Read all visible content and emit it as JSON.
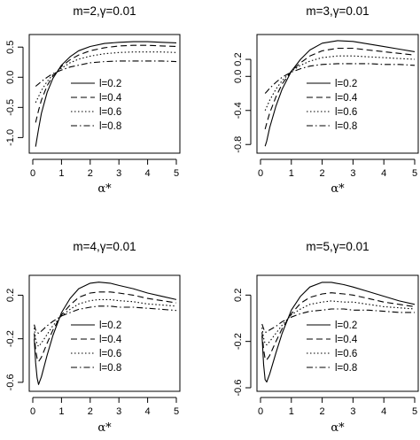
{
  "chart_data": [
    {
      "type": "line",
      "title": "m=2,γ=0.01",
      "xlabel": "α*",
      "ylabel": "",
      "xlim": [
        0,
        5
      ],
      "ylim": [
        -1.2,
        0.65
      ],
      "xticks": [
        0,
        1,
        2,
        3,
        4,
        5
      ],
      "yticks": [
        -1.0,
        -0.5,
        0.0,
        0.5
      ],
      "ytick_labels": [
        "-1.0",
        "-0.5",
        "0.0",
        "0.5"
      ],
      "legend": "center-right",
      "grid": false,
      "series": [
        {
          "name": "l=0.2",
          "dash": "",
          "x": [
            0.1,
            0.2,
            0.3,
            0.5,
            0.7,
            1.0,
            1.3,
            1.6,
            2.0,
            2.5,
            3.0,
            3.5,
            4.0,
            4.5,
            5.0
          ],
          "y": [
            -1.15,
            -0.86,
            -0.6,
            -0.25,
            -0.02,
            0.2,
            0.34,
            0.44,
            0.51,
            0.56,
            0.58,
            0.59,
            0.59,
            0.58,
            0.57
          ]
        },
        {
          "name": "l=0.4",
          "dash": "7,4",
          "x": [
            0.1,
            0.2,
            0.3,
            0.5,
            0.7,
            1.0,
            1.3,
            1.6,
            2.0,
            2.5,
            3.0,
            3.5,
            4.0,
            4.5,
            5.0
          ],
          "y": [
            -0.75,
            -0.55,
            -0.38,
            -0.14,
            0.02,
            0.18,
            0.29,
            0.37,
            0.44,
            0.49,
            0.52,
            0.53,
            0.53,
            0.52,
            0.51
          ]
        },
        {
          "name": "l=0.6",
          "dash": "1.5,2.5",
          "x": [
            0.1,
            0.2,
            0.3,
            0.5,
            0.7,
            1.0,
            1.3,
            1.6,
            2.0,
            2.5,
            3.0,
            3.5,
            4.0,
            4.5,
            5.0
          ],
          "y": [
            -0.42,
            -0.32,
            -0.22,
            -0.07,
            0.04,
            0.15,
            0.24,
            0.3,
            0.35,
            0.39,
            0.41,
            0.42,
            0.42,
            0.42,
            0.41
          ]
        },
        {
          "name": "l=0.8",
          "dash": "7,3,1.5,3",
          "x": [
            0.1,
            0.2,
            0.3,
            0.5,
            0.7,
            1.0,
            1.3,
            1.6,
            2.0,
            2.5,
            3.0,
            3.5,
            4.0,
            4.5,
            5.0
          ],
          "y": [
            -0.15,
            -0.11,
            -0.07,
            0.0,
            0.06,
            0.12,
            0.17,
            0.2,
            0.24,
            0.26,
            0.27,
            0.27,
            0.27,
            0.27,
            0.26
          ]
        }
      ]
    },
    {
      "type": "line",
      "title": "m=3,γ=0.01",
      "xlabel": "α*",
      "ylabel": "",
      "xlim": [
        0,
        5
      ],
      "ylim": [
        -0.86,
        0.45
      ],
      "xticks": [
        0,
        1,
        2,
        3,
        4,
        5
      ],
      "yticks": [
        -0.8,
        -0.4,
        0.0,
        0.2
      ],
      "ytick_labels": [
        "-0.8",
        "-0.4",
        "0.0",
        "0.2"
      ],
      "legend": "center-right",
      "grid": false,
      "series": [
        {
          "name": "l=0.2",
          "dash": "",
          "x": [
            0.15,
            0.2,
            0.3,
            0.5,
            0.7,
            1.0,
            1.3,
            1.6,
            2.0,
            2.5,
            3.0,
            3.5,
            4.0,
            4.5,
            5.0
          ],
          "y": [
            -0.82,
            -0.76,
            -0.6,
            -0.35,
            -0.15,
            0.06,
            0.2,
            0.31,
            0.39,
            0.42,
            0.41,
            0.38,
            0.35,
            0.32,
            0.29
          ]
        },
        {
          "name": "l=0.4",
          "dash": "7,4",
          "x": [
            0.15,
            0.2,
            0.3,
            0.5,
            0.7,
            1.0,
            1.3,
            1.6,
            2.0,
            2.5,
            3.0,
            3.5,
            4.0,
            4.5,
            5.0
          ],
          "y": [
            -0.62,
            -0.55,
            -0.43,
            -0.24,
            -0.09,
            0.06,
            0.16,
            0.24,
            0.3,
            0.33,
            0.33,
            0.31,
            0.29,
            0.27,
            0.25
          ]
        },
        {
          "name": "l=0.6",
          "dash": "1.5,2.5",
          "x": [
            0.15,
            0.2,
            0.3,
            0.5,
            0.7,
            1.0,
            1.3,
            1.6,
            2.0,
            2.5,
            3.0,
            3.5,
            4.0,
            4.5,
            5.0
          ],
          "y": [
            -0.4,
            -0.36,
            -0.28,
            -0.15,
            -0.05,
            0.06,
            0.13,
            0.18,
            0.22,
            0.24,
            0.24,
            0.23,
            0.22,
            0.21,
            0.2
          ]
        },
        {
          "name": "l=0.8",
          "dash": "7,3,1.5,3",
          "x": [
            0.15,
            0.2,
            0.3,
            0.5,
            0.7,
            1.0,
            1.3,
            1.6,
            2.0,
            2.5,
            3.0,
            3.5,
            4.0,
            4.5,
            5.0
          ],
          "y": [
            -0.2,
            -0.18,
            -0.14,
            -0.07,
            -0.01,
            0.05,
            0.09,
            0.12,
            0.14,
            0.15,
            0.15,
            0.15,
            0.14,
            0.14,
            0.13
          ]
        }
      ]
    },
    {
      "type": "line",
      "title": "m=4,γ=0.01",
      "xlabel": "α*",
      "ylabel": "",
      "xlim": [
        0,
        5
      ],
      "ylim": [
        -0.65,
        0.35
      ],
      "xticks": [
        0,
        1,
        2,
        3,
        4,
        5
      ],
      "yticks": [
        -0.6,
        -0.2,
        0.2
      ],
      "ytick_labels": [
        "-0.6",
        "-0.2",
        "0.2"
      ],
      "legend": "center-right",
      "grid": false,
      "series": [
        {
          "name": "l=0.2",
          "dash": "",
          "x": [
            0.05,
            0.1,
            0.15,
            0.2,
            0.3,
            0.5,
            0.7,
            1.0,
            1.3,
            1.6,
            2.0,
            2.3,
            2.7,
            3.0,
            3.5,
            4.0,
            4.5,
            5.0
          ],
          "y": [
            -0.2,
            -0.42,
            -0.56,
            -0.62,
            -0.55,
            -0.35,
            -0.17,
            0.04,
            0.17,
            0.26,
            0.31,
            0.32,
            0.31,
            0.29,
            0.26,
            0.22,
            0.19,
            0.16
          ]
        },
        {
          "name": "l=0.4",
          "dash": "7,4",
          "x": [
            0.05,
            0.1,
            0.15,
            0.2,
            0.3,
            0.5,
            0.7,
            1.0,
            1.3,
            1.6,
            2.0,
            2.3,
            2.7,
            3.0,
            3.5,
            4.0,
            4.5,
            5.0
          ],
          "y": [
            -0.15,
            -0.3,
            -0.38,
            -0.41,
            -0.37,
            -0.24,
            -0.12,
            0.02,
            0.11,
            0.18,
            0.22,
            0.23,
            0.23,
            0.22,
            0.2,
            0.17,
            0.15,
            0.13
          ]
        },
        {
          "name": "l=0.6",
          "dash": "1.5,2.5",
          "x": [
            0.05,
            0.1,
            0.15,
            0.2,
            0.3,
            0.5,
            0.7,
            1.0,
            1.3,
            1.6,
            2.0,
            2.3,
            2.7,
            3.0,
            3.5,
            4.0,
            4.5,
            5.0
          ],
          "y": [
            -0.1,
            -0.2,
            -0.25,
            -0.27,
            -0.24,
            -0.16,
            -0.08,
            0.01,
            0.07,
            0.12,
            0.15,
            0.16,
            0.16,
            0.15,
            0.14,
            0.12,
            0.11,
            0.1
          ]
        },
        {
          "name": "l=0.8",
          "dash": "7,3,1.5,3",
          "x": [
            0.05,
            0.1,
            0.15,
            0.2,
            0.3,
            0.5,
            0.7,
            1.0,
            1.3,
            1.6,
            2.0,
            2.3,
            2.7,
            3.0,
            3.5,
            4.0,
            4.5,
            5.0
          ],
          "y": [
            -0.07,
            -0.12,
            -0.14,
            -0.15,
            -0.13,
            -0.08,
            -0.04,
            0.01,
            0.04,
            0.07,
            0.09,
            0.1,
            0.1,
            0.09,
            0.09,
            0.08,
            0.07,
            0.06
          ]
        }
      ]
    },
    {
      "type": "line",
      "title": "m=5,γ=0.01",
      "xlabel": "α*",
      "ylabel": "",
      "xlim": [
        0,
        5
      ],
      "ylim": [
        -0.6,
        0.34
      ],
      "xticks": [
        0,
        1,
        2,
        3,
        4,
        5
      ],
      "yticks": [
        -0.6,
        -0.2,
        0.2
      ],
      "ytick_labels": [
        "-0.6",
        "-0.2",
        "0.2"
      ],
      "legend": "center-right",
      "grid": false,
      "series": [
        {
          "name": "l=0.2",
          "dash": "",
          "x": [
            0.05,
            0.1,
            0.15,
            0.2,
            0.3,
            0.5,
            0.7,
            1.0,
            1.3,
            1.6,
            2.0,
            2.3,
            2.7,
            3.0,
            3.5,
            4.0,
            4.5,
            5.0
          ],
          "y": [
            -0.15,
            -0.4,
            -0.53,
            -0.55,
            -0.48,
            -0.3,
            -0.13,
            0.07,
            0.19,
            0.27,
            0.31,
            0.31,
            0.29,
            0.27,
            0.23,
            0.19,
            0.15,
            0.12
          ]
        },
        {
          "name": "l=0.4",
          "dash": "7,4",
          "x": [
            0.05,
            0.1,
            0.15,
            0.2,
            0.3,
            0.5,
            0.7,
            1.0,
            1.3,
            1.6,
            2.0,
            2.3,
            2.7,
            3.0,
            3.5,
            4.0,
            4.5,
            5.0
          ],
          "y": [
            -0.12,
            -0.27,
            -0.35,
            -0.36,
            -0.32,
            -0.2,
            -0.09,
            0.04,
            0.13,
            0.18,
            0.21,
            0.22,
            0.21,
            0.2,
            0.17,
            0.14,
            0.12,
            0.1
          ]
        },
        {
          "name": "l=0.6",
          "dash": "1.5,2.5",
          "x": [
            0.05,
            0.1,
            0.15,
            0.2,
            0.3,
            0.5,
            0.7,
            1.0,
            1.3,
            1.6,
            2.0,
            2.3,
            2.7,
            3.0,
            3.5,
            4.0,
            4.5,
            5.0
          ],
          "y": [
            -0.08,
            -0.17,
            -0.22,
            -0.23,
            -0.2,
            -0.13,
            -0.06,
            0.03,
            0.08,
            0.12,
            0.14,
            0.15,
            0.14,
            0.14,
            0.12,
            0.1,
            0.09,
            0.08
          ]
        },
        {
          "name": "l=0.8",
          "dash": "7,3,1.5,3",
          "x": [
            0.05,
            0.1,
            0.15,
            0.2,
            0.3,
            0.5,
            0.7,
            1.0,
            1.3,
            1.6,
            2.0,
            2.3,
            2.7,
            3.0,
            3.5,
            4.0,
            4.5,
            5.0
          ],
          "y": [
            -0.05,
            -0.09,
            -0.12,
            -0.12,
            -0.1,
            -0.07,
            -0.03,
            0.01,
            0.04,
            0.06,
            0.07,
            0.08,
            0.08,
            0.07,
            0.07,
            0.06,
            0.05,
            0.05
          ]
        }
      ]
    }
  ]
}
